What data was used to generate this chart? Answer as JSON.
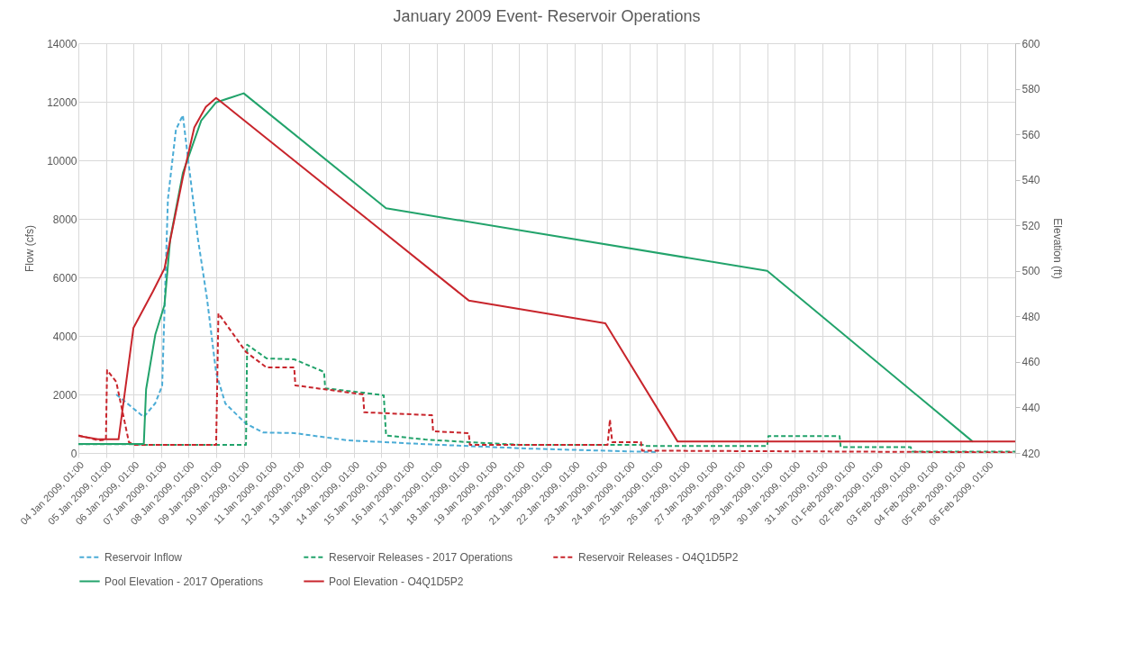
{
  "chart_data": {
    "type": "line",
    "title": "January 2009 Event- Reservoir Operations",
    "ylabel": "Flow (cfs)",
    "y2label": "Elevation (ft)",
    "xlim": [
      "2009-01-04T01:00",
      "2009-02-07T01:00"
    ],
    "xticks": [
      {
        "value": "2009-01-04T01:00",
        "label": "04 Jan 2009, 01:00"
      },
      {
        "value": "2009-01-05T01:00",
        "label": "05 Jan 2009, 01:00"
      },
      {
        "value": "2009-01-06T01:00",
        "label": "06 Jan 2009, 01:00"
      },
      {
        "value": "2009-01-07T01:00",
        "label": "07 Jan 2009, 01:00"
      },
      {
        "value": "2009-01-08T01:00",
        "label": "08 Jan 2009, 01:00"
      },
      {
        "value": "2009-01-09T01:00",
        "label": "09 Jan 2009, 01:00"
      },
      {
        "value": "2009-01-10T01:00",
        "label": "10 Jan 2009, 01:00"
      },
      {
        "value": "2009-01-11T01:00",
        "label": "11 Jan 2009, 01:00"
      },
      {
        "value": "2009-01-12T01:00",
        "label": "12 Jan 2009, 01:00"
      },
      {
        "value": "2009-01-13T01:00",
        "label": "13 Jan 2009, 01:00"
      },
      {
        "value": "2009-01-14T01:00",
        "label": "14 Jan 2009, 01:00"
      },
      {
        "value": "2009-01-15T01:00",
        "label": "15 Jan 2009, 01:00"
      },
      {
        "value": "2009-01-16T01:00",
        "label": "16 Jan 2009, 01:00"
      },
      {
        "value": "2009-01-17T01:00",
        "label": "17 Jan 2009, 01:00"
      },
      {
        "value": "2009-01-18T01:00",
        "label": "18 Jan 2009, 01:00"
      },
      {
        "value": "2009-01-19T01:00",
        "label": "19 Jan 2009, 01:00"
      },
      {
        "value": "2009-01-20T01:00",
        "label": "20 Jan 2009, 01:00"
      },
      {
        "value": "2009-01-21T01:00",
        "label": "21 Jan 2009, 01:00"
      },
      {
        "value": "2009-01-22T01:00",
        "label": "22 Jan 2009, 01:00"
      },
      {
        "value": "2009-01-23T01:00",
        "label": "23 Jan 2009, 01:00"
      },
      {
        "value": "2009-01-24T01:00",
        "label": "24 Jan 2009, 01:00"
      },
      {
        "value": "2009-01-25T01:00",
        "label": "25 Jan 2009, 01:00"
      },
      {
        "value": "2009-01-26T01:00",
        "label": "26 Jan 2009, 01:00"
      },
      {
        "value": "2009-01-27T01:00",
        "label": "27 Jan 2009, 01:00"
      },
      {
        "value": "2009-01-28T01:00",
        "label": "28 Jan 2009, 01:00"
      },
      {
        "value": "2009-01-29T01:00",
        "label": "29 Jan 2009, 01:00"
      },
      {
        "value": "2009-01-30T01:00",
        "label": "30 Jan 2009, 01:00"
      },
      {
        "value": "2009-01-31T01:00",
        "label": "31 Jan 2009, 01:00"
      },
      {
        "value": "2009-02-01T01:00",
        "label": "01 Feb 2009, 01:00"
      },
      {
        "value": "2009-02-02T01:00",
        "label": "02 Feb 2009, 01:00"
      },
      {
        "value": "2009-02-03T01:00",
        "label": "03 Feb 2009, 01:00"
      },
      {
        "value": "2009-02-04T01:00",
        "label": "04 Feb 2009, 01:00"
      },
      {
        "value": "2009-02-05T01:00",
        "label": "05 Feb 2009, 01:00"
      },
      {
        "value": "2009-02-06T01:00",
        "label": "06 Feb 2009, 01:00"
      },
      {
        "value": "2009-02-07T01:00",
        "label": null
      }
    ],
    "ylim": [
      0,
      14000
    ],
    "yticks": [
      0,
      2000,
      4000,
      6000,
      8000,
      10000,
      12000,
      14000
    ],
    "y2lim": [
      420,
      600
    ],
    "y2ticks": [
      420,
      440,
      460,
      480,
      500,
      520,
      540,
      560,
      580,
      600
    ],
    "grid": true,
    "legend": "bottom",
    "series": [
      {
        "name": "Reservoir Inflow",
        "color": "#4bacd6",
        "line_style": "dashed",
        "x": [
          "2009-01-05T10:00",
          "2009-01-06T10:00",
          "2009-01-06T20:00",
          "2009-01-07T02:00",
          "2009-01-07T07:00",
          "2009-01-07T14:00",
          "2009-01-07T20:00",
          "2009-01-08T01:00",
          "2009-01-08T09:00",
          "2009-01-08T17:00",
          "2009-01-09T01:00",
          "2009-01-09T09:00",
          "2009-01-10T03:00",
          "2009-01-10T18:00",
          "2009-01-11T21:00",
          "2009-01-13T20:00",
          "2009-01-17T03:00",
          "2009-01-20T09:00",
          "2009-01-24T04:00",
          "2009-01-25T01:00"
        ],
        "values": [
          2000,
          1230,
          1700,
          2300,
          8680,
          11050,
          11540,
          9900,
          7350,
          5290,
          2740,
          1690,
          1000,
          700,
          680,
          430,
          280,
          150,
          50,
          30
        ]
      },
      {
        "name": "Reservoir Releases - 2017 Operations",
        "color": "#22a36b",
        "line_style": "dashed",
        "x": [
          "2009-01-04T01:00",
          "2009-01-06T01:00",
          "2009-01-06T10:00",
          "2009-01-10T03:00",
          "2009-01-10T04:00",
          "2009-01-10T21:00",
          "2009-01-11T21:00",
          "2009-01-12T23:00",
          "2009-01-13T00:00",
          "2009-01-14T09:00",
          "2009-01-15T03:00",
          "2009-01-15T05:00",
          "2009-01-16T15:00",
          "2009-01-18T05:00",
          "2009-01-20T01:00",
          "2009-01-24T15:00",
          "2009-01-24T16:00",
          "2009-01-29T01:00",
          "2009-01-29T02:00",
          "2009-01-31T16:00",
          "2009-01-31T17:00",
          "2009-02-03T06:00",
          "2009-02-03T07:00",
          "2009-02-07T01:00"
        ],
        "values": [
          300,
          300,
          280,
          280,
          3700,
          3230,
          3200,
          2770,
          2210,
          2060,
          1970,
          600,
          460,
          370,
          280,
          280,
          240,
          240,
          580,
          580,
          200,
          200,
          50,
          50
        ]
      },
      {
        "name": "Reservoir Releases - O4Q1D5P2",
        "color": "#c8252c",
        "line_style": "dashed",
        "x": [
          "2009-01-04T01:00",
          "2009-01-04T19:00",
          "2009-01-05T01:00",
          "2009-01-05T02:00",
          "2009-01-05T10:00",
          "2009-01-05T21:00",
          "2009-01-06T01:00",
          "2009-01-09T01:00",
          "2009-01-09T03:00",
          "2009-01-10T03:00",
          "2009-01-10T21:00",
          "2009-01-11T21:00",
          "2009-01-11T22:00",
          "2009-01-14T09:00",
          "2009-01-14T10:00",
          "2009-01-16T21:00",
          "2009-01-16T22:00",
          "2009-01-18T05:00",
          "2009-01-18T06:00",
          "2009-01-23T06:00",
          "2009-01-23T08:00",
          "2009-01-23T10:00",
          "2009-01-24T11:00",
          "2009-01-24T12:00",
          "2009-02-07T01:00"
        ],
        "values": [
          600,
          430,
          450,
          2830,
          2430,
          370,
          280,
          280,
          4770,
          3450,
          2920,
          2920,
          2310,
          2000,
          1390,
          1290,
          740,
          680,
          280,
          280,
          1140,
          370,
          370,
          80,
          20
        ]
      },
      {
        "name": "Pool Elevation - 2017 Operations",
        "color": "#22a36b",
        "line_style": "solid",
        "axis": "y2",
        "x": [
          "2009-01-04T01:00",
          "2009-01-06T10:00",
          "2009-01-06T12:00",
          "2009-01-06T20:00",
          "2009-01-07T04:00",
          "2009-01-07T09:00",
          "2009-01-07T20:00",
          "2009-01-08T12:00",
          "2009-01-09T01:00",
          "2009-01-10T01:00",
          "2009-01-15T05:00",
          "2009-01-29T01:00",
          "2009-02-05T12:00"
        ],
        "values": [
          424,
          424,
          448,
          472,
          485,
          514,
          543,
          566,
          574,
          578,
          527.5,
          500,
          425
        ]
      },
      {
        "name": "Pool Elevation - O4Q1D5P2",
        "color": "#c8252c",
        "line_style": "solid",
        "axis": "y2",
        "x": [
          "2009-01-04T01:00",
          "2009-01-04T18:00",
          "2009-01-05T12:00",
          "2009-01-06T01:00",
          "2009-01-06T18:00",
          "2009-01-07T04:00",
          "2009-01-07T20:00",
          "2009-01-08T06:00",
          "2009-01-08T16:00",
          "2009-01-09T01:00",
          "2009-01-18T05:00",
          "2009-01-23T04:00",
          "2009-01-25T19:00",
          "2009-02-07T01:00"
        ],
        "values": [
          427.5,
          426,
          426,
          475,
          491,
          501,
          541,
          563,
          572,
          576,
          487,
          477,
          425,
          425
        ]
      }
    ]
  }
}
